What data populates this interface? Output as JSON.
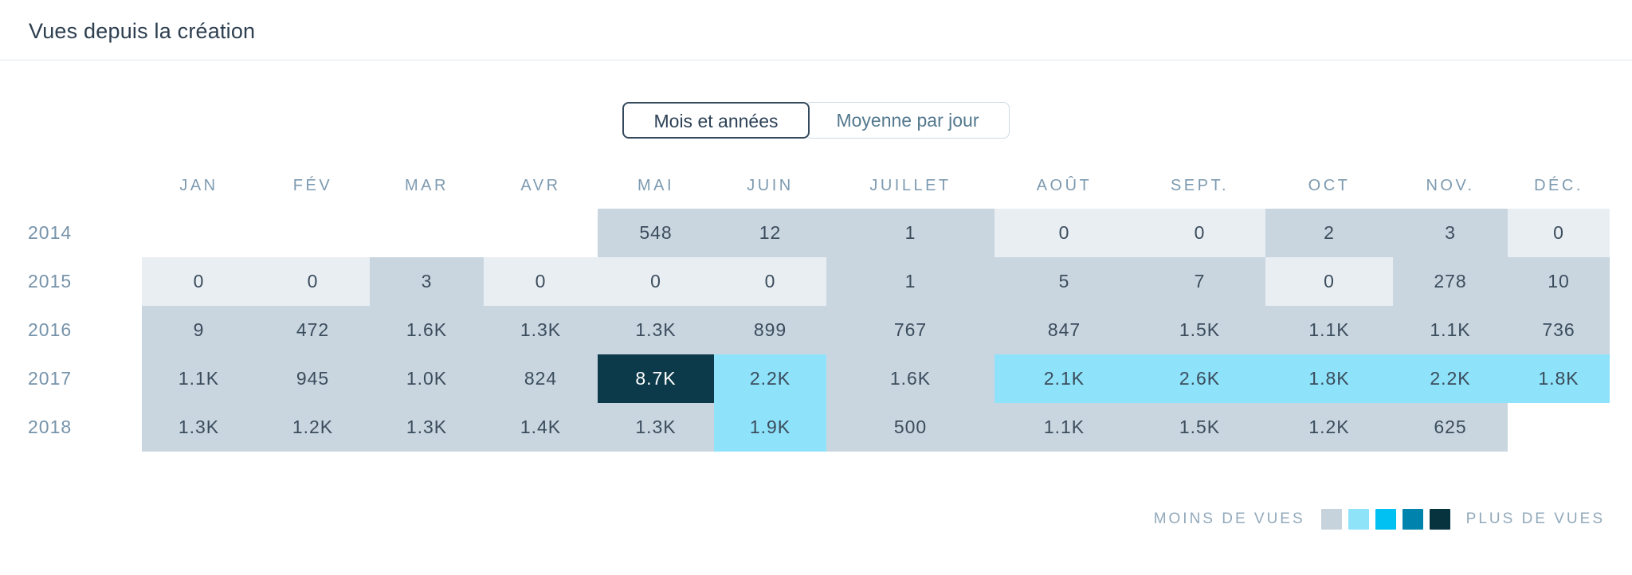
{
  "header": {
    "title": "Vues depuis la création"
  },
  "toggle": {
    "options": [
      {
        "label": "Mois et années",
        "selected": true
      },
      {
        "label": "Moyenne par jour",
        "selected": false
      }
    ]
  },
  "chart_data": {
    "type": "heatmap",
    "title": "Vues depuis la création",
    "columns": [
      "JAN",
      "FÉV",
      "MAR",
      "AVR",
      "MAI",
      "JUIN",
      "JUILLET",
      "AOÛT",
      "SEPT.",
      "OCT",
      "NOV.",
      "DÉC."
    ],
    "rows": [
      {
        "year": "2014",
        "cells": [
          null,
          null,
          null,
          null,
          {
            "v": "548",
            "level": 1
          },
          {
            "v": "12",
            "level": 1
          },
          {
            "v": "1",
            "level": 1
          },
          {
            "v": "0",
            "level": 0
          },
          {
            "v": "0",
            "level": 0
          },
          {
            "v": "2",
            "level": 1
          },
          {
            "v": "3",
            "level": 1
          },
          {
            "v": "0",
            "level": 0
          }
        ]
      },
      {
        "year": "2015",
        "cells": [
          {
            "v": "0",
            "level": 0
          },
          {
            "v": "0",
            "level": 0
          },
          {
            "v": "3",
            "level": 1
          },
          {
            "v": "0",
            "level": 0
          },
          {
            "v": "0",
            "level": 0
          },
          {
            "v": "0",
            "level": 0
          },
          {
            "v": "1",
            "level": 1
          },
          {
            "v": "5",
            "level": 1
          },
          {
            "v": "7",
            "level": 1
          },
          {
            "v": "0",
            "level": 0
          },
          {
            "v": "278",
            "level": 1
          },
          {
            "v": "10",
            "level": 1
          }
        ]
      },
      {
        "year": "2016",
        "cells": [
          {
            "v": "9",
            "level": 1
          },
          {
            "v": "472",
            "level": 1
          },
          {
            "v": "1.6K",
            "level": 1
          },
          {
            "v": "1.3K",
            "level": 1
          },
          {
            "v": "1.3K",
            "level": 1
          },
          {
            "v": "899",
            "level": 1
          },
          {
            "v": "767",
            "level": 1
          },
          {
            "v": "847",
            "level": 1
          },
          {
            "v": "1.5K",
            "level": 1
          },
          {
            "v": "1.1K",
            "level": 1
          },
          {
            "v": "1.1K",
            "level": 1
          },
          {
            "v": "736",
            "level": 1
          }
        ]
      },
      {
        "year": "2017",
        "cells": [
          {
            "v": "1.1K",
            "level": 1
          },
          {
            "v": "945",
            "level": 1
          },
          {
            "v": "1.0K",
            "level": 1
          },
          {
            "v": "824",
            "level": 1
          },
          {
            "v": "8.7K",
            "level": 5
          },
          {
            "v": "2.2K",
            "level": 2
          },
          {
            "v": "1.6K",
            "level": 1
          },
          {
            "v": "2.1K",
            "level": 2
          },
          {
            "v": "2.6K",
            "level": 2
          },
          {
            "v": "1.8K",
            "level": 2
          },
          {
            "v": "2.2K",
            "level": 2
          },
          {
            "v": "1.8K",
            "level": 2
          }
        ]
      },
      {
        "year": "2018",
        "cells": [
          {
            "v": "1.3K",
            "level": 1
          },
          {
            "v": "1.2K",
            "level": 1
          },
          {
            "v": "1.3K",
            "level": 1
          },
          {
            "v": "1.4K",
            "level": 1
          },
          {
            "v": "1.3K",
            "level": 1
          },
          {
            "v": "1.9K",
            "level": 2
          },
          {
            "v": "500",
            "level": 1
          },
          {
            "v": "1.1K",
            "level": 1
          },
          {
            "v": "1.5K",
            "level": 1
          },
          {
            "v": "1.2K",
            "level": 1
          },
          {
            "v": "625",
            "level": 1
          },
          null
        ]
      }
    ],
    "palette": {
      "0": "#e9eef3",
      "1": "#c9d6e0",
      "2": "#8ee2f9",
      "3": "#00c0f0",
      "4": "#0084ad",
      "5": "#0c3a4b"
    }
  },
  "legend": {
    "less": "MOINS DE VUES",
    "more": "PLUS DE VUES",
    "swatches": [
      "#c7d3dc",
      "#8fe3f9",
      "#00c1f2",
      "#0084ad",
      "#07333f"
    ]
  },
  "colors": {
    "title_text": "#2d3f50",
    "label_text": "#7d9ab0",
    "cell_text": "#3b4c5c",
    "cell_text_on_dark": "#ffffff",
    "toggle_selected_border": "#34495c",
    "toggle_unselected_border": "#ccdbe4",
    "divider": "#e2e8ed"
  }
}
